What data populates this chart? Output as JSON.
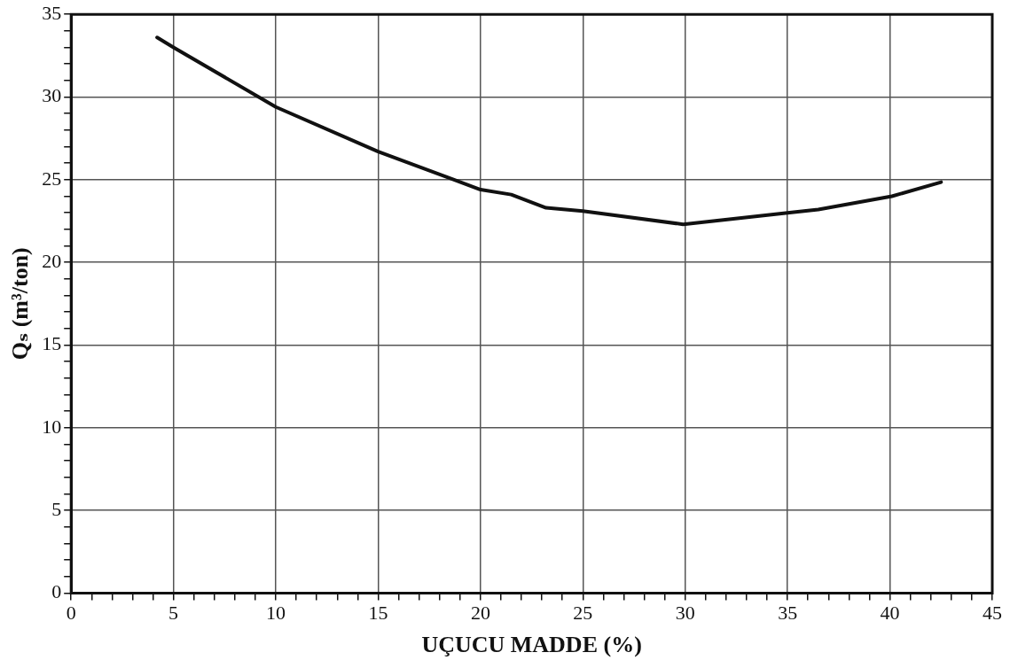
{
  "chart_data": {
    "type": "line",
    "xlabel": "UÇUCU MADDE (%)",
    "ylabel": "Qₛ (m³/ton)",
    "series": [
      {
        "color": "#111111",
        "x": [
          4.2,
          5,
          10,
          15,
          20,
          21.5,
          23.2,
          25,
          29.9,
          35,
          36.5,
          40.1,
          42.5
        ],
        "values": [
          33.6,
          33.0,
          29.4,
          26.7,
          24.4,
          24.1,
          23.3,
          23.1,
          22.3,
          23.0,
          23.2,
          24.0,
          24.85
        ]
      }
    ],
    "xlim": [
      0,
      45
    ],
    "ylim": [
      0,
      35
    ],
    "xticks": [
      0,
      {
        "value": 1,
        "label": null
      },
      {
        "value": 2,
        "label": null
      },
      {
        "value": 3,
        "label": null
      },
      {
        "value": 4,
        "label": null
      },
      5,
      {
        "value": 6,
        "label": null
      },
      {
        "value": 7,
        "label": null
      },
      {
        "value": 8,
        "label": null
      },
      {
        "value": 9,
        "label": null
      },
      10,
      {
        "value": 11,
        "label": null
      },
      {
        "value": 12,
        "label": null
      },
      {
        "value": 13,
        "label": null
      },
      {
        "value": 14,
        "label": null
      },
      15,
      {
        "value": 16,
        "label": null
      },
      {
        "value": 17,
        "label": null
      },
      {
        "value": 18,
        "label": null
      },
      {
        "value": 19,
        "label": null
      },
      20,
      {
        "value": 21,
        "label": null
      },
      {
        "value": 22,
        "label": null
      },
      {
        "value": 23,
        "label": null
      },
      {
        "value": 24,
        "label": null
      },
      25,
      {
        "value": 26,
        "label": null
      },
      {
        "value": 27,
        "label": null
      },
      {
        "value": 28,
        "label": null
      },
      {
        "value": 29,
        "label": null
      },
      30,
      {
        "value": 31,
        "label": null
      },
      {
        "value": 32,
        "label": null
      },
      {
        "value": 33,
        "label": null
      },
      {
        "value": 34,
        "label": null
      },
      35,
      {
        "value": 36,
        "label": null
      },
      {
        "value": 37,
        "label": null
      },
      {
        "value": 38,
        "label": null
      },
      {
        "value": 39,
        "label": null
      },
      40,
      {
        "value": 41,
        "label": null
      },
      {
        "value": 42,
        "label": null
      },
      {
        "value": 43,
        "label": null
      },
      {
        "value": 44,
        "label": null
      },
      45
    ],
    "yticks": [
      0,
      {
        "value": 1,
        "label": null
      },
      {
        "value": 2,
        "label": null
      },
      {
        "value": 3,
        "label": null
      },
      {
        "value": 4,
        "label": null
      },
      5,
      {
        "value": 6,
        "label": null
      },
      {
        "value": 7,
        "label": null
      },
      {
        "value": 8,
        "label": null
      },
      {
        "value": 9,
        "label": null
      },
      10,
      {
        "value": 11,
        "label": null
      },
      {
        "value": 12,
        "label": null
      },
      {
        "value": 13,
        "label": null
      },
      {
        "value": 14,
        "label": null
      },
      15,
      {
        "value": 16,
        "label": null
      },
      {
        "value": 17,
        "label": null
      },
      {
        "value": 18,
        "label": null
      },
      {
        "value": 19,
        "label": null
      },
      20,
      {
        "value": 21,
        "label": null
      },
      {
        "value": 22,
        "label": null
      },
      {
        "value": 23,
        "label": null
      },
      {
        "value": 24,
        "label": null
      },
      25,
      {
        "value": 26,
        "label": null
      },
      {
        "value": 27,
        "label": null
      },
      {
        "value": 28,
        "label": null
      },
      {
        "value": 29,
        "label": null
      },
      30,
      {
        "value": 31,
        "label": null
      },
      {
        "value": 32,
        "label": null
      },
      {
        "value": 33,
        "label": null
      },
      {
        "value": 34,
        "label": null
      },
      35
    ],
    "grid": true,
    "legend": false,
    "marker": "none",
    "line_style": "solid"
  }
}
